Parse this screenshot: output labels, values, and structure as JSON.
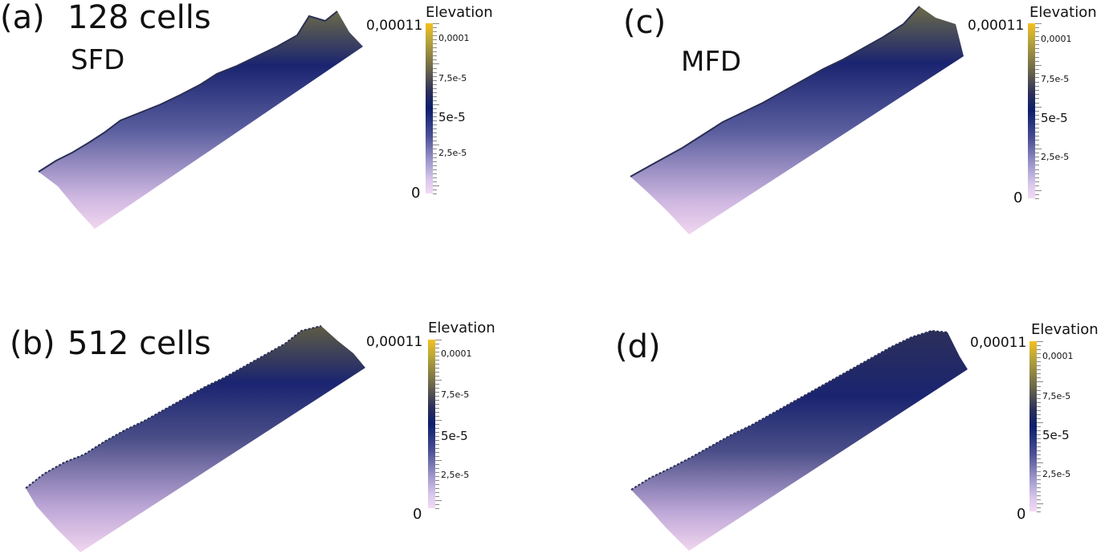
{
  "panels": [
    {
      "label": "(a)",
      "subtitle": "128 cells",
      "method": "SFD"
    },
    {
      "label": "(b)",
      "subtitle": "512 cells"
    },
    {
      "label": "(c)",
      "method": "MFD"
    },
    {
      "label": "(d)"
    }
  ],
  "colorbar": {
    "title": "Elevation",
    "max_label": "0,00011",
    "min_label": "0",
    "ticks": [
      "0,0001",
      "7,5e-5",
      "5e-5",
      "2,5e-5"
    ],
    "colors": [
      "#f4c01d",
      "#0c1e6b",
      "#f4d9f4"
    ]
  }
}
